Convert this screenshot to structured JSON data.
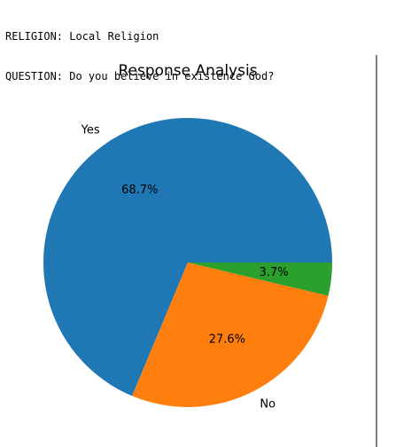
{
  "console": {
    "religion_line": "RELIGION: Local Religion",
    "question_line": "QUESTION: Do you believe in existence God?"
  },
  "chart_data": {
    "type": "pie",
    "title": "Response Analysis",
    "slices": [
      {
        "label": "Yes",
        "value": 68.7,
        "pct_label": "68.7%",
        "color": "#1f77b4"
      },
      {
        "label": "No",
        "value": 27.6,
        "pct_label": "27.6%",
        "color": "#ff7f0e"
      },
      {
        "label": "",
        "value": 3.7,
        "pct_label": "3.7%",
        "color": "#2ca02c"
      }
    ],
    "start_angle": 0,
    "direction": "counterclockwise"
  }
}
